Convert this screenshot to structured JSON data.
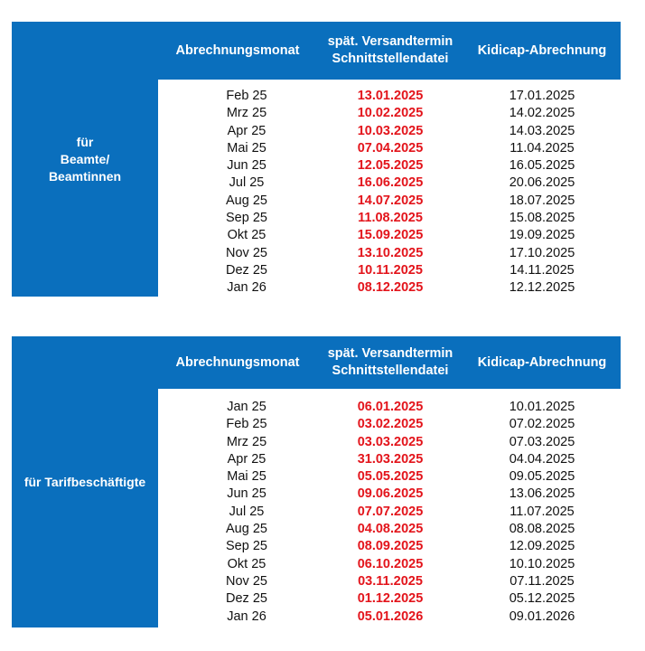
{
  "tables": [
    {
      "side_label": "für\nBeamte/\nBeamtinnen",
      "headers": [
        "Abrechnungsmonat",
        "spät. Versandtermin\nSchnittstellendatei",
        "Kidicap-Abrechnung"
      ],
      "rows": [
        [
          "Feb 25",
          "13.01.2025",
          "17.01.2025"
        ],
        [
          "Mrz 25",
          "10.02.2025",
          "14.02.2025"
        ],
        [
          "Apr 25",
          "10.03.2025",
          "14.03.2025"
        ],
        [
          "Mai 25",
          "07.04.2025",
          "11.04.2025"
        ],
        [
          "Jun 25",
          "12.05.2025",
          "16.05.2025"
        ],
        [
          "Jul 25",
          "16.06.2025",
          "20.06.2025"
        ],
        [
          "Aug 25",
          "14.07.2025",
          "18.07.2025"
        ],
        [
          "Sep 25",
          "11.08.2025",
          "15.08.2025"
        ],
        [
          "Okt 25",
          "15.09.2025",
          "19.09.2025"
        ],
        [
          "Nov 25",
          "13.10.2025",
          "17.10.2025"
        ],
        [
          "Dez 25",
          "10.11.2025",
          "14.11.2025"
        ],
        [
          "Jan 26",
          "08.12.2025",
          "12.12.2025"
        ]
      ]
    },
    {
      "side_label": "für Tarifbeschäftigte",
      "headers": [
        "Abrechnungsmonat",
        "spät. Versandtermin\nSchnittstellendatei",
        "Kidicap-Abrechnung"
      ],
      "rows": [
        [
          "Jan 25",
          "06.01.2025",
          "10.01.2025"
        ],
        [
          "Feb 25",
          "03.02.2025",
          "07.02.2025"
        ],
        [
          "Mrz 25",
          "03.03.2025",
          "07.03.2025"
        ],
        [
          "Apr 25",
          "31.03.2025",
          "04.04.2025"
        ],
        [
          "Mai 25",
          "05.05.2025",
          "09.05.2025"
        ],
        [
          "Jun 25",
          "09.06.2025",
          "13.06.2025"
        ],
        [
          "Jul 25",
          "07.07.2025",
          "11.07.2025"
        ],
        [
          "Aug 25",
          "04.08.2025",
          "08.08.2025"
        ],
        [
          "Sep 25",
          "08.09.2025",
          "12.09.2025"
        ],
        [
          "Okt 25",
          "06.10.2025",
          "10.10.2025"
        ],
        [
          "Nov 25",
          "03.11.2025",
          "07.11.2025"
        ],
        [
          "Dez 25",
          "01.12.2025",
          "05.12.2025"
        ],
        [
          "Jan 26",
          "05.01.2026",
          "09.01.2026"
        ]
      ]
    }
  ],
  "colors": {
    "header_blue": "#0a6fbd",
    "deadline_red": "#e3141b"
  }
}
